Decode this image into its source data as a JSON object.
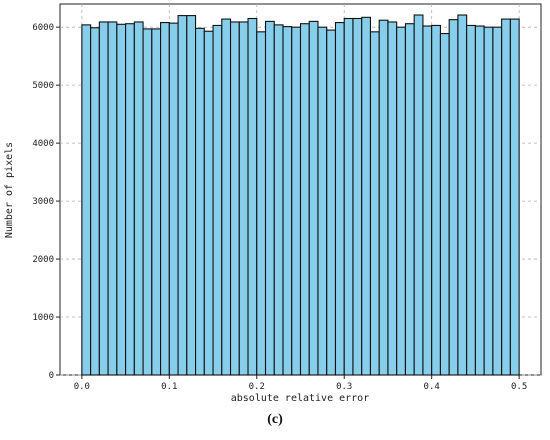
{
  "chart_data": {
    "type": "bar",
    "xlabel": "absolute relative error",
    "ylabel": "Number of pixels",
    "xlim": [
      -0.025,
      0.525
    ],
    "ylim": [
      0,
      6400
    ],
    "xticks": [
      "0.0",
      "0.1",
      "0.2",
      "0.3",
      "0.4",
      "0.5"
    ],
    "yticks": [
      "0",
      "1000",
      "2000",
      "3000",
      "4000",
      "5000",
      "6000"
    ],
    "grid": true,
    "bar_color": "#87CEEB",
    "edge_color": "#111111",
    "bins": {
      "start": 0.0,
      "end": 0.5,
      "count": 50
    },
    "values": [
      6040,
      5990,
      6090,
      6090,
      6050,
      6060,
      6090,
      5970,
      5970,
      6080,
      6070,
      6200,
      6200,
      5980,
      5930,
      6030,
      6140,
      6090,
      6090,
      6150,
      5920,
      6100,
      6040,
      6010,
      6000,
      6060,
      6100,
      6000,
      5950,
      6080,
      6150,
      6150,
      6170,
      5920,
      6120,
      6090,
      6000,
      6060,
      6210,
      6020,
      6030,
      5890,
      6130,
      6210,
      6030,
      6020,
      6000,
      6000,
      6140,
      6140
    ]
  },
  "caption": "(c)"
}
